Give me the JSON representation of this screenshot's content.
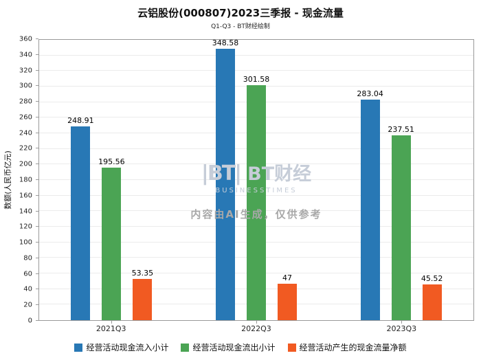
{
  "title": "云铝股份(000807)2023三季报 - 现金流量",
  "subtitle": "Q1-Q3 - BT财经绘制",
  "chart_data": {
    "type": "bar",
    "categories": [
      "2021Q3",
      "2022Q3",
      "2023Q3"
    ],
    "series": [
      {
        "name": "经营活动现金流入小计",
        "color": "#2878b5",
        "values": [
          248.91,
          348.58,
          283.04
        ]
      },
      {
        "name": "经营活动现金流出小计",
        "color": "#4ba454",
        "values": [
          195.56,
          301.58,
          237.51
        ]
      },
      {
        "name": "经营活动产生的现金流量净额",
        "color": "#f15a22",
        "values": [
          53.35,
          47,
          45.52
        ]
      }
    ],
    "xlabel": "",
    "ylabel": "数额(人民币亿元)",
    "ylim": [
      0,
      360
    ],
    "ytick_step": 20,
    "grid": true,
    "legend_position": "bottom",
    "value_labels": true
  },
  "watermark": {
    "logo_mark": "|BT|",
    "logo_text": "BT财经",
    "logo_sub": "BUSINESSTIMES",
    "disclaimer": "内容由AI生成，仅供参考"
  }
}
